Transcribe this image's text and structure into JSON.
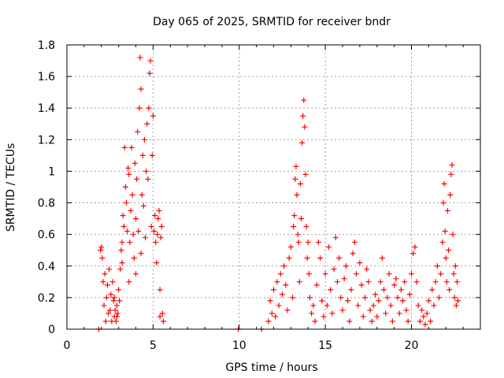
{
  "chart_data": {
    "type": "scatter",
    "title": "Day 065 of 2025, SRMTID for receiver bndr",
    "xlabel": "GPS time / hours",
    "ylabel": "SRMTID / TECUs",
    "xlim": [
      0,
      24
    ],
    "ylim": [
      0,
      1.8
    ],
    "xticks": [
      0,
      5,
      10,
      15,
      20
    ],
    "xtick_labels": [
      "0",
      "5",
      "10",
      "15",
      "20"
    ],
    "yticks": [
      0,
      0.2,
      0.4,
      0.6,
      0.8,
      1,
      1.2,
      1.4,
      1.6,
      1.8
    ],
    "ytick_labels": [
      "0",
      "0.2",
      "0.4",
      "0.6",
      "0.8",
      "1",
      "1.2",
      "1.4",
      "1.6",
      "1.8"
    ],
    "grid": true,
    "marker": "plus",
    "colors": {
      "points": "#ff0000",
      "grid": "#a0a0a0",
      "axes": "#000000",
      "background": "#ffffff"
    },
    "series": [
      {
        "name": "SRMTID",
        "points": [
          [
            1.85,
            0.0
          ],
          [
            1.95,
            0.5
          ],
          [
            2.0,
            0.52
          ],
          [
            2.05,
            0.45
          ],
          [
            2.1,
            0.3
          ],
          [
            2.15,
            0.15
          ],
          [
            2.2,
            0.35
          ],
          [
            2.25,
            0.05
          ],
          [
            2.3,
            0.2
          ],
          [
            2.35,
            0.28
          ],
          [
            2.4,
            0.1
          ],
          [
            2.45,
            0.38
          ],
          [
            2.5,
            0.12
          ],
          [
            2.55,
            0.22
          ],
          [
            2.6,
            0.05
          ],
          [
            2.65,
            0.3
          ],
          [
            2.7,
            0.18
          ],
          [
            2.75,
            0.08
          ],
          [
            2.8,
            0.12
          ],
          [
            2.85,
            0.05
          ],
          [
            2.9,
            0.15
          ],
          [
            2.95,
            0.1
          ],
          [
            3.0,
            0.25
          ],
          [
            3.05,
            0.18
          ],
          [
            3.1,
            0.38
          ],
          [
            3.15,
            0.5
          ],
          [
            3.2,
            0.55
          ],
          [
            3.25,
            0.72
          ],
          [
            3.3,
            0.65
          ],
          [
            3.35,
            1.15
          ],
          [
            3.4,
            0.9
          ],
          [
            3.45,
            0.8
          ],
          [
            3.5,
            0.62
          ],
          [
            3.55,
            1.02
          ],
          [
            3.6,
            0.98
          ],
          [
            3.65,
            0.55
          ],
          [
            3.7,
            0.75
          ],
          [
            3.75,
            1.15
          ],
          [
            3.8,
            0.85
          ],
          [
            3.85,
            0.6
          ],
          [
            3.9,
            0.45
          ],
          [
            3.95,
            1.05
          ],
          [
            4.0,
            0.7
          ],
          [
            4.05,
            0.95
          ],
          [
            4.1,
            1.25
          ],
          [
            4.15,
            0.62
          ],
          [
            4.2,
            1.4
          ],
          [
            4.25,
            1.72
          ],
          [
            4.3,
            1.52
          ],
          [
            4.35,
            0.85
          ],
          [
            4.4,
            1.1
          ],
          [
            4.45,
            0.78
          ],
          [
            4.5,
            1.2
          ],
          [
            4.55,
            0.58
          ],
          [
            4.6,
            1.0
          ],
          [
            4.65,
            1.3
          ],
          [
            4.7,
            0.95
          ],
          [
            4.75,
            1.4
          ],
          [
            4.8,
            1.62
          ],
          [
            4.85,
            1.7
          ],
          [
            4.9,
            0.65
          ],
          [
            4.95,
            1.1
          ],
          [
            5.0,
            1.35
          ],
          [
            5.05,
            0.62
          ],
          [
            5.1,
            0.72
          ],
          [
            5.15,
            0.55
          ],
          [
            5.2,
            0.42
          ],
          [
            5.25,
            0.6
          ],
          [
            5.3,
            0.7
          ],
          [
            5.35,
            0.75
          ],
          [
            5.4,
            0.25
          ],
          [
            5.45,
            0.58
          ],
          [
            5.5,
            0.65
          ],
          [
            5.55,
            0.1
          ],
          [
            5.6,
            0.05
          ],
          [
            5.4,
            0.08
          ],
          [
            4.0,
            0.35
          ],
          [
            4.3,
            0.48
          ],
          [
            3.6,
            0.3
          ],
          [
            3.2,
            0.42
          ],
          [
            2.9,
            0.08
          ],
          [
            2.75,
            0.2
          ],
          [
            9.95,
            0.0
          ],
          [
            11.3,
            0.0
          ],
          [
            11.7,
            0.05
          ],
          [
            11.8,
            0.18
          ],
          [
            11.9,
            0.1
          ],
          [
            12.0,
            0.25
          ],
          [
            12.1,
            0.08
          ],
          [
            12.2,
            0.3
          ],
          [
            12.3,
            0.15
          ],
          [
            12.4,
            0.35
          ],
          [
            12.5,
            0.22
          ],
          [
            12.6,
            0.4
          ],
          [
            12.7,
            0.28
          ],
          [
            12.8,
            0.12
          ],
          [
            12.9,
            0.45
          ],
          [
            13.0,
            0.52
          ],
          [
            13.1,
            0.2
          ],
          [
            13.15,
            0.65
          ],
          [
            13.2,
            0.72
          ],
          [
            13.25,
            0.95
          ],
          [
            13.3,
            1.03
          ],
          [
            13.35,
            0.85
          ],
          [
            13.4,
            0.6
          ],
          [
            13.45,
            0.55
          ],
          [
            13.5,
            0.3
          ],
          [
            13.55,
            0.92
          ],
          [
            13.6,
            0.7
          ],
          [
            13.65,
            1.18
          ],
          [
            13.7,
            1.35
          ],
          [
            13.75,
            1.45
          ],
          [
            13.8,
            1.28
          ],
          [
            13.85,
            0.98
          ],
          [
            13.9,
            0.65
          ],
          [
            13.95,
            0.45
          ],
          [
            14.0,
            0.55
          ],
          [
            14.05,
            0.35
          ],
          [
            14.1,
            0.2
          ],
          [
            14.2,
            0.1
          ],
          [
            14.3,
            0.15
          ],
          [
            14.4,
            0.05
          ],
          [
            14.5,
            0.28
          ],
          [
            14.6,
            0.55
          ],
          [
            14.7,
            0.45
          ],
          [
            14.8,
            0.18
          ],
          [
            14.9,
            0.08
          ],
          [
            15.0,
            0.35
          ],
          [
            15.1,
            0.15
          ],
          [
            15.2,
            0.52
          ],
          [
            15.3,
            0.25
          ],
          [
            15.4,
            0.1
          ],
          [
            15.5,
            0.38
          ],
          [
            15.6,
            0.58
          ],
          [
            15.7,
            0.3
          ],
          [
            15.8,
            0.45
          ],
          [
            15.9,
            0.2
          ],
          [
            16.0,
            0.12
          ],
          [
            16.1,
            0.32
          ],
          [
            16.2,
            0.4
          ],
          [
            16.3,
            0.18
          ],
          [
            16.4,
            0.05
          ],
          [
            16.5,
            0.25
          ],
          [
            16.6,
            0.48
          ],
          [
            16.7,
            0.55
          ],
          [
            16.8,
            0.35
          ],
          [
            16.9,
            0.15
          ],
          [
            17.0,
            0.42
          ],
          [
            17.1,
            0.28
          ],
          [
            17.2,
            0.08
          ],
          [
            17.3,
            0.2
          ],
          [
            17.4,
            0.38
          ],
          [
            17.5,
            0.3
          ],
          [
            17.6,
            0.12
          ],
          [
            17.7,
            0.05
          ],
          [
            17.8,
            0.15
          ],
          [
            17.9,
            0.22
          ],
          [
            18.0,
            0.08
          ],
          [
            18.1,
            0.18
          ],
          [
            18.2,
            0.3
          ],
          [
            18.3,
            0.45
          ],
          [
            18.4,
            0.25
          ],
          [
            18.5,
            0.1
          ],
          [
            18.6,
            0.2
          ],
          [
            18.7,
            0.35
          ],
          [
            18.8,
            0.15
          ],
          [
            18.9,
            0.05
          ],
          [
            19.0,
            0.28
          ],
          [
            19.1,
            0.32
          ],
          [
            19.2,
            0.2
          ],
          [
            19.3,
            0.1
          ],
          [
            19.4,
            0.25
          ],
          [
            19.5,
            0.18
          ],
          [
            19.6,
            0.3
          ],
          [
            19.7,
            0.12
          ],
          [
            19.8,
            0.05
          ],
          [
            19.9,
            0.22
          ],
          [
            20.0,
            0.35
          ],
          [
            20.1,
            0.48
          ],
          [
            20.2,
            0.52
          ],
          [
            20.3,
            0.3
          ],
          [
            20.4,
            0.15
          ],
          [
            20.5,
            0.05
          ],
          [
            20.6,
            0.12
          ],
          [
            20.7,
            0.08
          ],
          [
            20.8,
            0.03
          ],
          [
            20.9,
            0.1
          ],
          [
            21.0,
            0.18
          ],
          [
            21.1,
            0.05
          ],
          [
            21.2,
            0.25
          ],
          [
            21.3,
            0.15
          ],
          [
            21.4,
            0.3
          ],
          [
            21.5,
            0.4
          ],
          [
            21.6,
            0.2
          ],
          [
            21.7,
            0.35
          ],
          [
            21.8,
            0.55
          ],
          [
            21.85,
            0.8
          ],
          [
            21.9,
            0.92
          ],
          [
            21.95,
            0.62
          ],
          [
            22.0,
            0.45
          ],
          [
            22.05,
            0.3
          ],
          [
            22.1,
            0.75
          ],
          [
            22.15,
            0.5
          ],
          [
            22.2,
            0.25
          ],
          [
            22.25,
            0.85
          ],
          [
            22.3,
            0.98
          ],
          [
            22.35,
            1.04
          ],
          [
            22.4,
            0.6
          ],
          [
            22.45,
            0.35
          ],
          [
            22.5,
            0.2
          ],
          [
            22.55,
            0.4
          ],
          [
            22.6,
            0.15
          ],
          [
            22.65,
            0.3
          ],
          [
            22.7,
            0.18
          ]
        ]
      }
    ]
  }
}
